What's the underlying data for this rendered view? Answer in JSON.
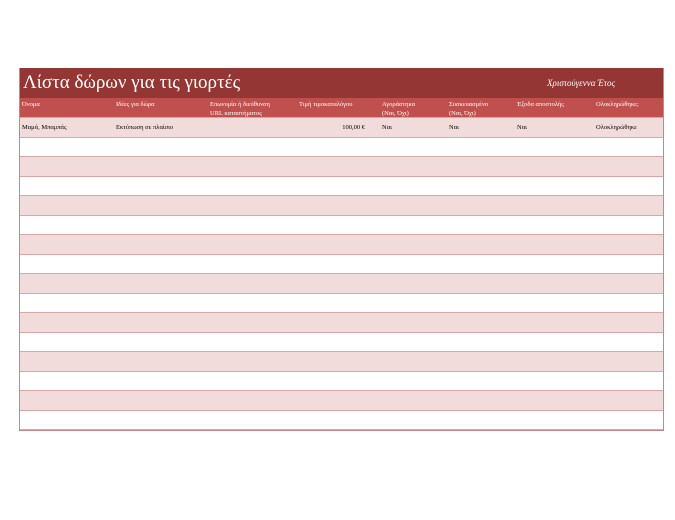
{
  "title": "Λίστα δώρων για τις γιορτές",
  "subtitle": "Χριστούγεννα  Έτος",
  "columns": [
    "Όνομα",
    "Ιδέες για δώρα",
    "Επωνυμία ή διεύθυνση\nURL καταστήματος",
    "Τιμή τιμοκαταλόγου",
    "Αγοράστηκα\n(Ναι, Όχι)",
    "Συσκευασμένο\n(Ναι, Όχι)",
    "Έξοδα αποστολής",
    "Ολοκληρώθηκε;"
  ],
  "rows": [
    [
      "Μαμά, Μπαμπάς",
      "Εκτύπωση σε πλαίσιο",
      "",
      "100,00 €",
      "Ναι",
      "Ναι",
      "Ναι",
      "Ολοκληρώθηκε"
    ]
  ],
  "empty_rows": 15,
  "colors": {
    "title_bg": "#943634",
    "header_bg": "#c0504d",
    "band": "#f2dcdb"
  }
}
